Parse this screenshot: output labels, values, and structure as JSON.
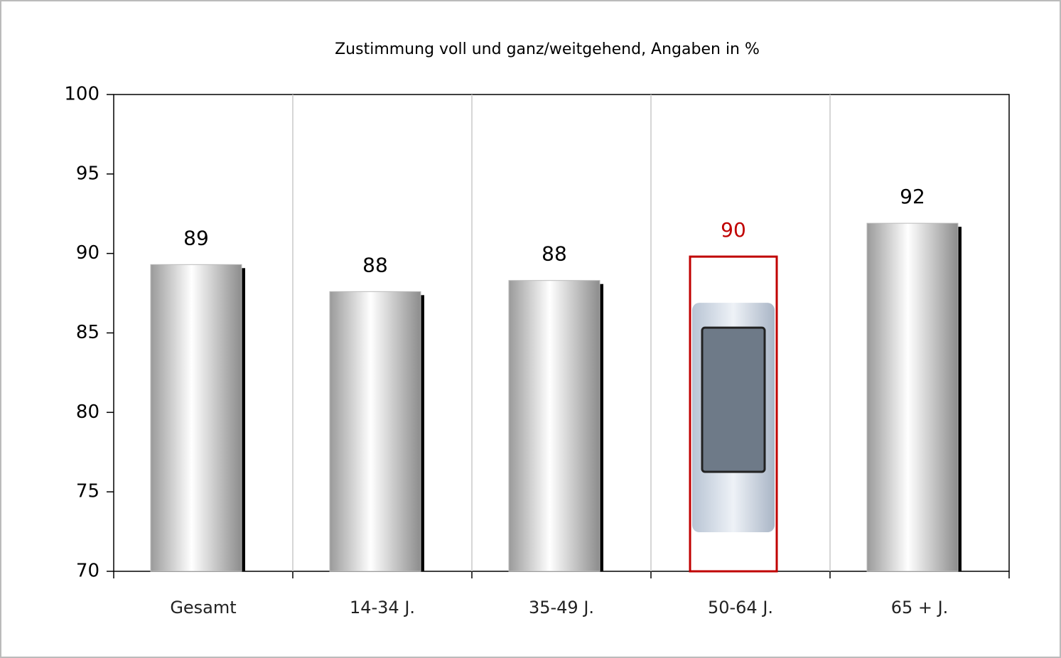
{
  "chart_data": {
    "type": "bar",
    "title": "Zustimmung voll und ganz/weitgehend, Angaben in %",
    "categories": [
      "Gesamt",
      "14-34 J.",
      "35-49 J.",
      "50-64 J.",
      "65 + J."
    ],
    "values": [
      89.3,
      87.6,
      88.3,
      89.8,
      91.9
    ],
    "value_labels": [
      "89",
      "88",
      "88",
      "90",
      "92"
    ],
    "colors": [
      "#c8c8c8",
      "#c8c8c8",
      "#c8c8c8",
      "#c00000",
      "#c8c8c8"
    ],
    "ylim": [
      70,
      100
    ],
    "yticks": [
      70,
      75,
      80,
      85,
      90,
      95,
      100
    ],
    "grid": true
  }
}
